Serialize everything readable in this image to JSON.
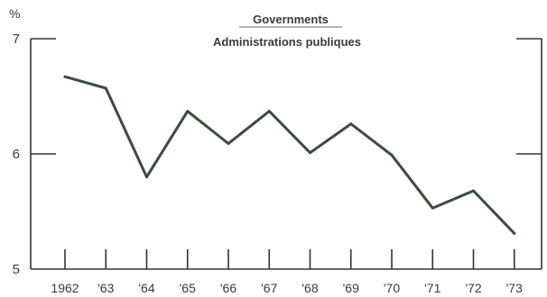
{
  "chart_data": {
    "type": "line",
    "title": "Governments",
    "subtitle": "Administrations publiques",
    "ylabel": "%",
    "xlabel": "",
    "categories": [
      "1962",
      "'63",
      "'64",
      "'65",
      "'66",
      "'67",
      "'68",
      "'69",
      "'70",
      "'71",
      "'72",
      "'73"
    ],
    "series": [
      {
        "values": [
          6.67,
          6.57,
          5.8,
          6.37,
          6.09,
          6.37,
          6.01,
          6.26,
          5.99,
          5.53,
          5.68,
          5.31
        ]
      }
    ],
    "ylim": [
      5,
      7
    ],
    "yticks": [
      "5",
      "6",
      "7"
    ],
    "grid": false,
    "line_color": "#3d4a40",
    "axis_color": "#333333"
  }
}
